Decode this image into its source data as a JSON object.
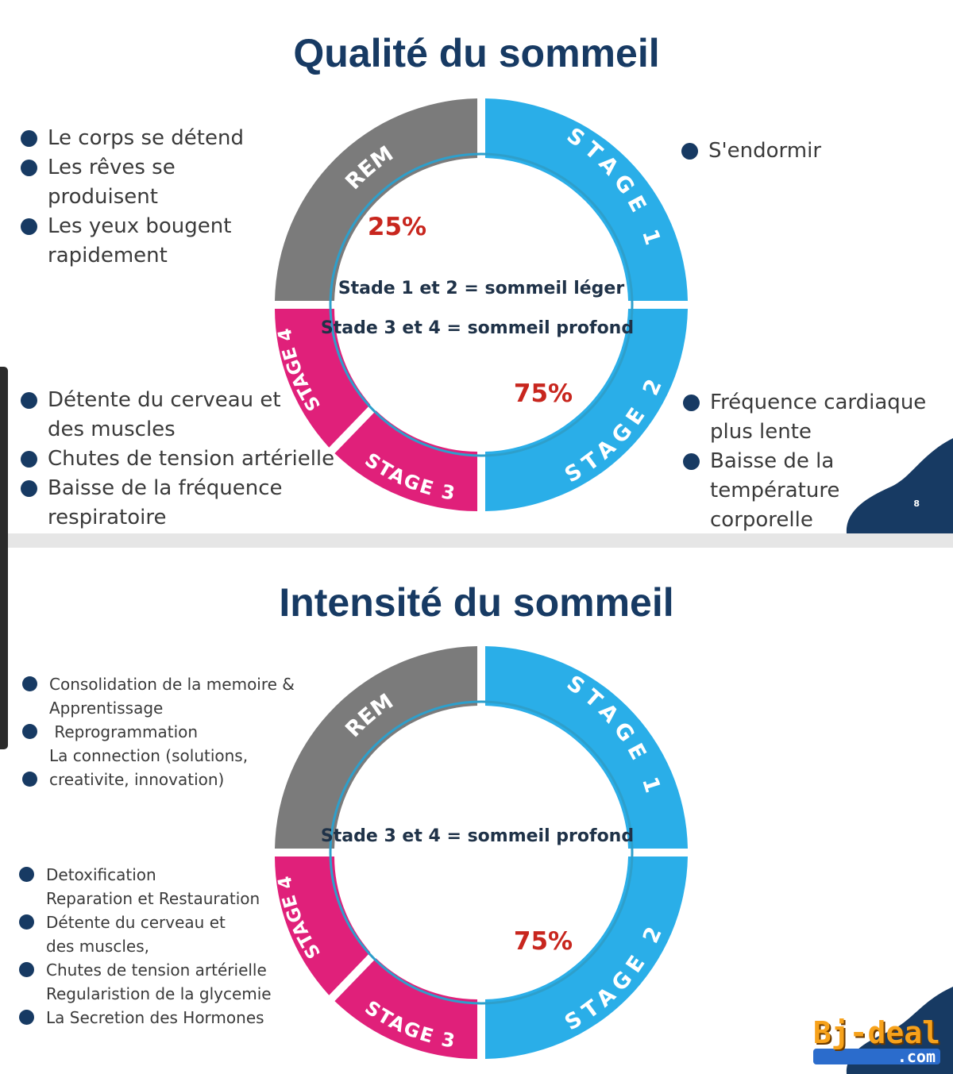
{
  "colors": {
    "title": "#173a63",
    "rem": "#7b7b7b",
    "stage1": "#2aaee8",
    "stage2": "#2aaee8",
    "deep": "#e0207a",
    "percent": "#c8261e",
    "ring_outline": "#2e9fcb"
  },
  "panel1": {
    "title": "Qualité du sommeil",
    "wheel": {
      "rem": "REM",
      "stage1": "STAGE 1",
      "stage2": "STAGE 2",
      "stage3": "STAGE 3",
      "stage4": "STAGE 4",
      "pct_rem": "25%",
      "pct_stages": "75%",
      "light": "Stade 1 et 2 = sommeil léger",
      "deep": "Stade 3 et 4 = sommeil profond"
    },
    "rem_bullets": [
      {
        "lines": [
          "Le corps se détend"
        ]
      },
      {
        "lines": [
          "Les rêves se produisent"
        ]
      },
      {
        "lines": [
          "Les yeux bougent",
          "rapidement"
        ]
      }
    ],
    "stage1_bullets": [
      {
        "lines": [
          "S'endormir"
        ]
      }
    ],
    "deep_bullets": [
      {
        "lines": [
          "Détente du cerveau et",
          "des muscles"
        ]
      },
      {
        "lines": [
          "Chutes de tension artérielle"
        ]
      },
      {
        "lines": [
          "Baisse de la fréquence",
          "respiratoire"
        ]
      }
    ],
    "stage2_bullets": [
      {
        "lines": [
          "Fréquence cardiaque",
          "plus lente"
        ]
      },
      {
        "lines": [
          "Baisse de la température",
          "corporelle"
        ]
      }
    ],
    "page_number": "8"
  },
  "panel2": {
    "title": "Intensité du sommeil",
    "wheel": {
      "rem": "REM",
      "stage1": "STAGE 1",
      "stage2": "STAGE 2",
      "stage3": "STAGE 3",
      "stage4": "STAGE 4",
      "pct_stages": "75%",
      "deep": "Stade 3 et 4 = sommeil profond"
    },
    "rem_bullets": [
      {
        "lines": [
          "Consolidation de la memoire &",
          "Apprentissage"
        ]
      },
      {
        "lines": [
          " Reprogrammation",
          "La connection (solutions,"
        ]
      },
      {
        "lines": [
          "creativite, innovation)"
        ]
      }
    ],
    "deep_bullets": [
      {
        "lines": [
          "Detoxification",
          "Reparation et Restauration"
        ]
      },
      {
        "lines": [
          "Détente du cerveau et",
          "des muscles,"
        ]
      },
      {
        "lines": [
          "Chutes de tension artérielle",
          "Regularistion de la glycemie"
        ]
      },
      {
        "lines": [
          "La Secretion des Hormones"
        ]
      }
    ]
  },
  "watermark": {
    "main": "Bj-deal",
    "sub": ".com"
  }
}
